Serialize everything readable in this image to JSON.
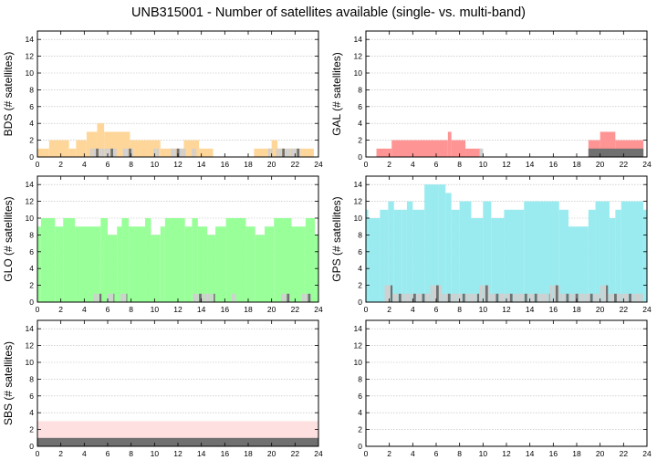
{
  "title": "UNB315001 - Number of satellites available (single- vs. multi-band)",
  "colors": {
    "BDS": "#ffd699",
    "GAL": "#ff9494",
    "GLO": "#99ff99",
    "GPS": "#99ebf0",
    "SBS": "#ffe0e0",
    "multi_band_light": "#d0d0d0",
    "multi_band_dark": "#707070"
  },
  "chart_data": [
    {
      "type": "area",
      "panel": "BDS",
      "ylabel": "BDS (# satellites)",
      "xlim": [
        0,
        24
      ],
      "ylim": [
        0,
        15
      ],
      "x_ticks": [
        0,
        2,
        4,
        6,
        8,
        10,
        12,
        14,
        16,
        18,
        20,
        22,
        24
      ],
      "y_ticks": [
        0,
        2,
        4,
        6,
        8,
        10,
        12,
        14
      ],
      "grid": true,
      "series": [
        {
          "values": [
            [
              0,
              1
            ],
            [
              1,
              2
            ],
            [
              2.7,
              1
            ],
            [
              3.3,
              2
            ],
            [
              4.2,
              3
            ],
            [
              5.1,
              4
            ],
            [
              5.7,
              3
            ],
            [
              7.9,
              2
            ],
            [
              10.5,
              1
            ],
            [
              12.5,
              2
            ],
            [
              13.8,
              1
            ],
            [
              15,
              0
            ],
            [
              18.5,
              1
            ],
            [
              20,
              2
            ],
            [
              20.5,
              1
            ],
            [
              22.5,
              1
            ],
            [
              23.6,
              0
            ]
          ]
        },
        {
          "values": [
            [
              0,
              0
            ],
            [
              4.5,
              1
            ],
            [
              6.8,
              0
            ],
            [
              7.3,
              1
            ],
            [
              8.2,
              0
            ],
            [
              9.9,
              1
            ],
            [
              10.4,
              0
            ],
            [
              11.4,
              1
            ],
            [
              12.7,
              0
            ],
            [
              13.2,
              1
            ],
            [
              13.6,
              0
            ],
            [
              19.7,
              1
            ],
            [
              20.1,
              0
            ],
            [
              20.4,
              1
            ],
            [
              22.5,
              0
            ]
          ]
        }
      ]
    },
    {
      "type": "area",
      "panel": "GAL",
      "ylabel": "GAL (# satellites)",
      "xlim": [
        0,
        24
      ],
      "ylim": [
        0,
        15
      ],
      "x_ticks": [
        0,
        2,
        4,
        6,
        8,
        10,
        12,
        14,
        16,
        18,
        20,
        22,
        24
      ],
      "y_ticks": [
        0,
        2,
        4,
        6,
        8,
        10,
        12,
        14
      ],
      "grid": true,
      "series": [
        {
          "values": [
            [
              0,
              0
            ],
            [
              0.9,
              1
            ],
            [
              2.2,
              2
            ],
            [
              7,
              3
            ],
            [
              7.3,
              2
            ],
            [
              8.5,
              1
            ],
            [
              9.8,
              0
            ],
            [
              19,
              2
            ],
            [
              20,
              3
            ],
            [
              21.3,
              2
            ],
            [
              23.7,
              0
            ]
          ]
        },
        {
          "values": [
            [
              0,
              0
            ],
            [
              9.7,
              1
            ],
            [
              10,
              0
            ],
            [
              19,
              1
            ],
            [
              23.7,
              0
            ]
          ]
        }
      ]
    },
    {
      "type": "area",
      "panel": "GLO",
      "ylabel": "GLO (# satellites)",
      "xlim": [
        0,
        24
      ],
      "ylim": [
        0,
        15
      ],
      "x_ticks": [
        0,
        2,
        4,
        6,
        8,
        10,
        12,
        14,
        16,
        18,
        20,
        22,
        24
      ],
      "y_ticks": [
        0,
        2,
        4,
        6,
        8,
        10,
        12,
        14
      ],
      "grid": true,
      "series": [
        {
          "values": [
            [
              0,
              9
            ],
            [
              0.3,
              10
            ],
            [
              1.5,
              9
            ],
            [
              2.2,
              10
            ],
            [
              3.2,
              9
            ],
            [
              5.4,
              10
            ],
            [
              6,
              8
            ],
            [
              6.8,
              9
            ],
            [
              7.2,
              10
            ],
            [
              7.8,
              9
            ],
            [
              9.2,
              10
            ],
            [
              9.7,
              8
            ],
            [
              10.5,
              9
            ],
            [
              10.9,
              10
            ],
            [
              12.6,
              9
            ],
            [
              13.2,
              10
            ],
            [
              13.7,
              9
            ],
            [
              14.5,
              8
            ],
            [
              15.2,
              9
            ],
            [
              16.1,
              10
            ],
            [
              17.8,
              9
            ],
            [
              18.6,
              8
            ],
            [
              19.4,
              9
            ],
            [
              20.2,
              10
            ],
            [
              21.7,
              9
            ],
            [
              22.9,
              10
            ],
            [
              23.7,
              8
            ],
            [
              24,
              0
            ]
          ]
        },
        {
          "values": [
            [
              0,
              0
            ],
            [
              4.8,
              1
            ],
            [
              5.5,
              0
            ],
            [
              6,
              1
            ],
            [
              6.6,
              0
            ],
            [
              7.1,
              1
            ],
            [
              7.7,
              0
            ],
            [
              13.3,
              1
            ],
            [
              15.2,
              0
            ],
            [
              16.6,
              1
            ],
            [
              17,
              0
            ],
            [
              20.8,
              1
            ],
            [
              21.6,
              0
            ],
            [
              22.6,
              1
            ],
            [
              23.4,
              0
            ]
          ]
        }
      ]
    },
    {
      "type": "area",
      "panel": "GPS",
      "ylabel": "GPS (# satellites)",
      "xlim": [
        0,
        24
      ],
      "ylim": [
        0,
        15
      ],
      "x_ticks": [
        0,
        2,
        4,
        6,
        8,
        10,
        12,
        14,
        16,
        18,
        20,
        22,
        24
      ],
      "y_ticks": [
        0,
        2,
        4,
        6,
        8,
        10,
        12,
        14
      ],
      "grid": true,
      "series": [
        {
          "values": [
            [
              0,
              11
            ],
            [
              0.2,
              10
            ],
            [
              1.2,
              11
            ],
            [
              1.9,
              12
            ],
            [
              2.4,
              11
            ],
            [
              3.1,
              11
            ],
            [
              3.5,
              12
            ],
            [
              4,
              11
            ],
            [
              5,
              14
            ],
            [
              6.2,
              14
            ],
            [
              6.8,
              13
            ],
            [
              7.3,
              11
            ],
            [
              8,
              12
            ],
            [
              9,
              10
            ],
            [
              10,
              12
            ],
            [
              10.7,
              10
            ],
            [
              11.8,
              11
            ],
            [
              13.5,
              12
            ],
            [
              16.5,
              11
            ],
            [
              17.3,
              9
            ],
            [
              19,
              11
            ],
            [
              19.6,
              12
            ],
            [
              20.8,
              10
            ],
            [
              21.3,
              11
            ],
            [
              21.8,
              12
            ],
            [
              23.7,
              11
            ],
            [
              24,
              0
            ]
          ]
        },
        {
          "values": [
            [
              0,
              0
            ],
            [
              1.6,
              2
            ],
            [
              2.3,
              1
            ],
            [
              4.3,
              1
            ],
            [
              5.5,
              2
            ],
            [
              6.5,
              1
            ],
            [
              9.7,
              2
            ],
            [
              10.6,
              1
            ],
            [
              11.8,
              1
            ],
            [
              13.9,
              1
            ],
            [
              15.7,
              2
            ],
            [
              16.6,
              1
            ],
            [
              17.4,
              1
            ],
            [
              20,
              2
            ],
            [
              20.7,
              1
            ],
            [
              23.7,
              0
            ]
          ]
        }
      ]
    },
    {
      "type": "area",
      "panel": "SBS",
      "ylabel": "SBS (# satellites)",
      "xlim": [
        0,
        24
      ],
      "ylim": [
        0,
        15
      ],
      "x_ticks": [
        0,
        2,
        4,
        6,
        8,
        10,
        12,
        14,
        16,
        18,
        20,
        22,
        24
      ],
      "y_ticks": [
        0,
        2,
        4,
        6,
        8,
        10,
        12,
        14
      ],
      "grid": true,
      "series": [
        {
          "values": [
            [
              0,
              3
            ],
            [
              24,
              0
            ]
          ]
        },
        {
          "values": [
            [
              0,
              1
            ],
            [
              24,
              0
            ]
          ]
        }
      ]
    },
    {
      "type": "area",
      "panel": "",
      "ylabel": "",
      "xlim": [
        0,
        24
      ],
      "ylim": [
        0,
        15
      ],
      "x_ticks": [
        0,
        2,
        4,
        6,
        8,
        10,
        12,
        14,
        16,
        18,
        20,
        22,
        24
      ],
      "y_ticks": [
        0,
        2,
        4,
        6,
        8,
        10,
        12,
        14
      ],
      "grid": true,
      "series": []
    }
  ]
}
